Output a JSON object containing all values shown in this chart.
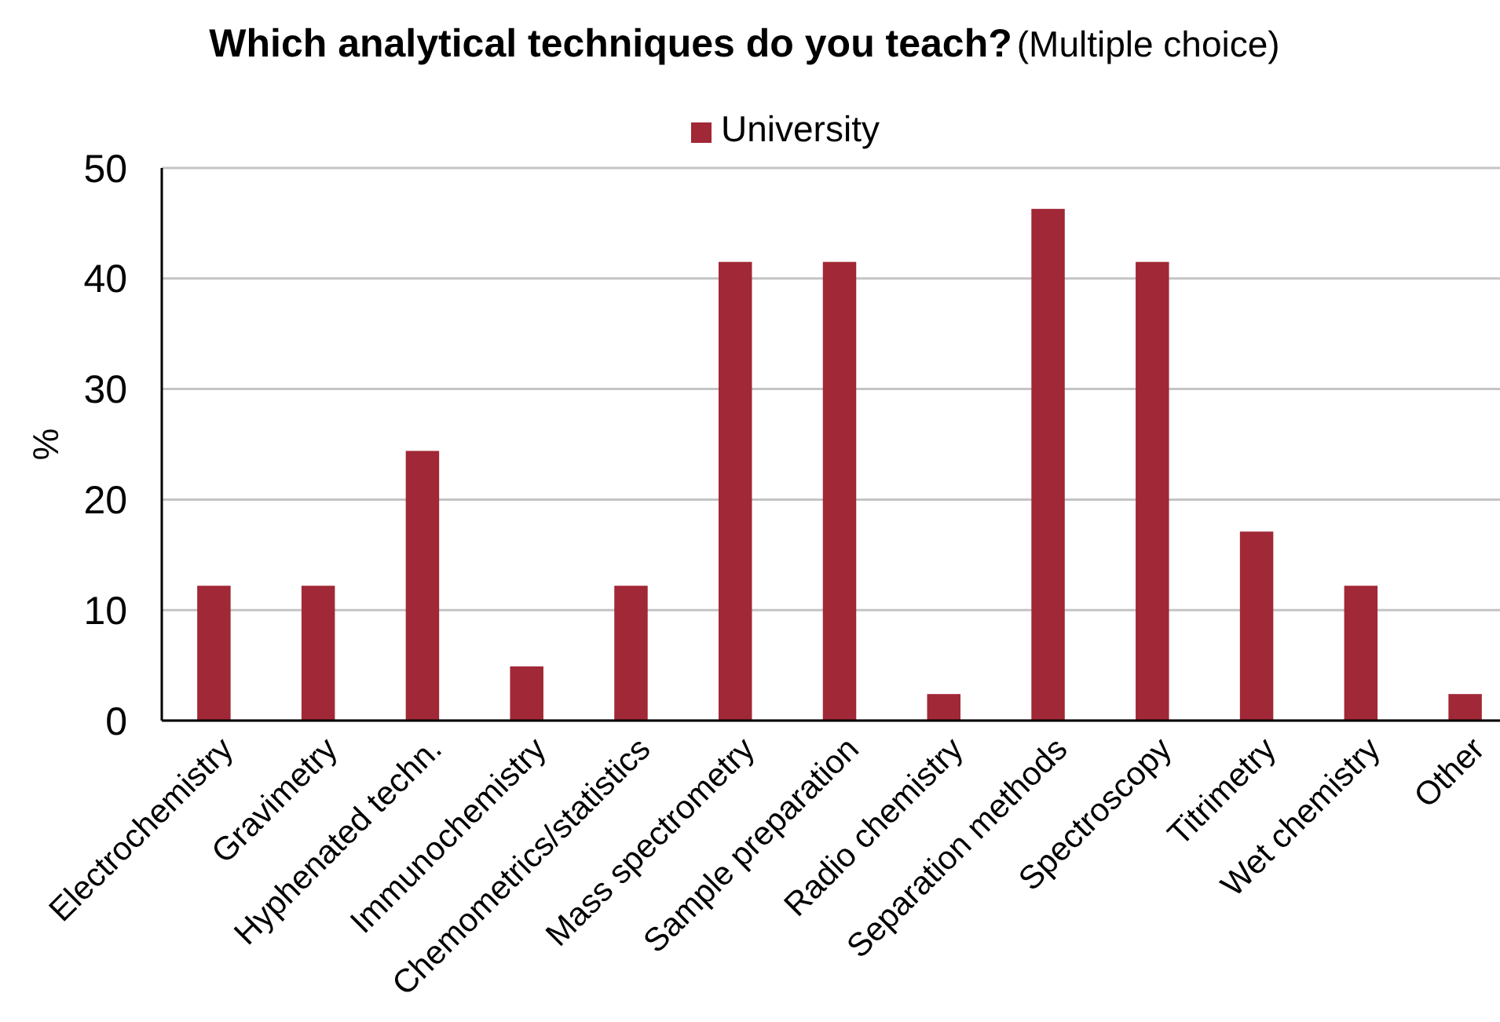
{
  "chart_data": {
    "type": "bar",
    "title": "Which analytical techniques do you teach?",
    "subtitle": "(Multiple choice)",
    "ylabel": "%",
    "categories": [
      "Electrochemistry",
      "Gravimetry",
      "Hyphenated techn.",
      "Immunochemistry",
      "Chemometrics/statistics",
      "Mass spectrometry",
      "Sample preparation",
      "Radio chemistry",
      "Separation methods",
      "Spectroscopy",
      "Titrimetry",
      "Wet chemistry",
      "Other"
    ],
    "series": [
      {
        "name": "University",
        "color": "#a12836",
        "values": [
          12.2,
          12.2,
          24.4,
          4.9,
          12.2,
          41.5,
          41.5,
          2.4,
          46.3,
          41.5,
          17.1,
          12.2,
          2.4
        ]
      }
    ],
    "ylim": [
      0,
      50
    ],
    "yticks": [
      0,
      10,
      20,
      30,
      40,
      50
    ],
    "grid": "y",
    "legend": "top"
  }
}
